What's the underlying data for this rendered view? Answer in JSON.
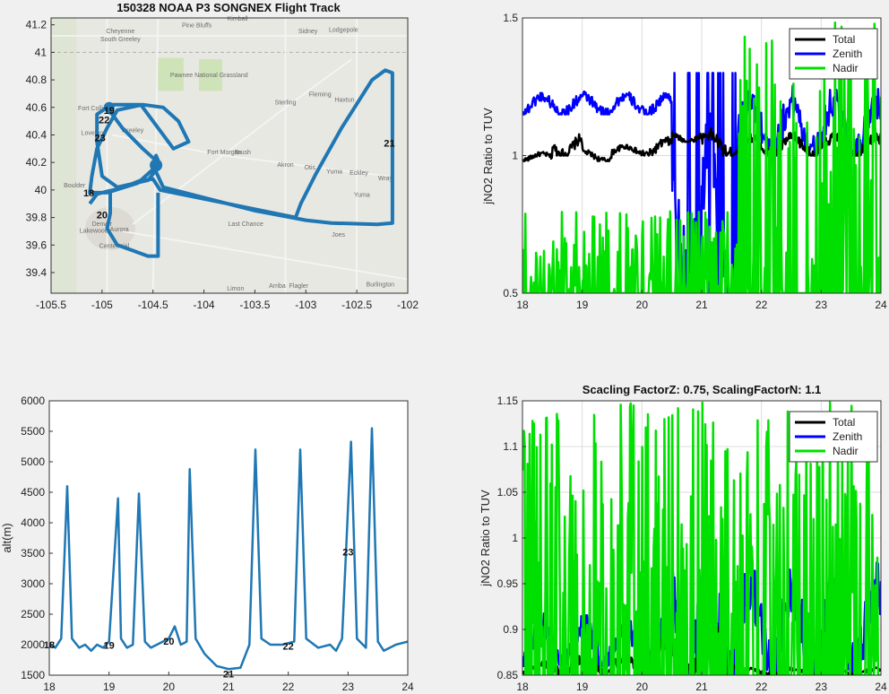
{
  "figure": {
    "background": "#f0f0f0"
  },
  "chart_data": [
    {
      "id": "map",
      "type": "line",
      "title": "150328 NOAA P3 SONGNEX Flight Track",
      "xlim": [
        -105.5,
        -102
      ],
      "ylim": [
        39.25,
        41.25
      ],
      "xticks": [
        -105.5,
        -105,
        -104.5,
        -104,
        -103.5,
        -103,
        -102.5,
        -102
      ],
      "yticks": [
        39.4,
        39.6,
        39.8,
        40,
        40.2,
        40.4,
        40.6,
        40.8,
        41,
        41.2
      ],
      "grid": false,
      "series": [
        {
          "color": "#1f77b4",
          "points": [
            [
              -104.92,
              40.55
            ],
            [
              -104.92,
              40.62
            ],
            [
              -104.75,
              40.62
            ],
            [
              -104.62,
              40.62
            ],
            [
              -104.5,
              40.5
            ],
            [
              -104.3,
              40.3
            ],
            [
              -104.15,
              40.35
            ],
            [
              -104.25,
              40.5
            ],
            [
              -104.4,
              40.6
            ],
            [
              -104.6,
              40.62
            ],
            [
              -104.85,
              40.58
            ],
            [
              -104.95,
              40.45
            ],
            [
              -105.05,
              40.3
            ],
            [
              -105.1,
              40.1
            ],
            [
              -105.12,
              39.98
            ],
            [
              -104.95,
              39.98
            ],
            [
              -104.65,
              40.05
            ],
            [
              -104.5,
              40.15
            ],
            [
              -104.45,
              40.2
            ],
            [
              -104.6,
              40.3
            ],
            [
              -104.8,
              40.45
            ],
            [
              -104.95,
              40.6
            ],
            [
              -105.05,
              40.55
            ],
            [
              -105.05,
              40.35
            ],
            [
              -105.0,
              40.1
            ],
            [
              -104.85,
              40.02
            ],
            [
              -104.55,
              40.07
            ],
            [
              -104.43,
              40.18
            ],
            [
              -104.47,
              40.25
            ],
            [
              -104.5,
              40.18
            ],
            [
              -104.4,
              40.02
            ],
            [
              -103.5,
              39.85
            ],
            [
              -103.0,
              39.78
            ],
            [
              -102.75,
              39.76
            ],
            [
              -102.3,
              39.75
            ],
            [
              -102.15,
              39.76
            ],
            [
              -102.15,
              40.85
            ],
            [
              -102.22,
              40.87
            ],
            [
              -102.35,
              40.8
            ],
            [
              -102.65,
              40.45
            ],
            [
              -102.9,
              40.12
            ],
            [
              -103.05,
              39.9
            ],
            [
              -103.1,
              39.8
            ],
            [
              -104.43,
              40.0
            ],
            [
              -104.5,
              40.08
            ],
            [
              -104.62,
              40.07
            ],
            [
              -104.82,
              40.01
            ],
            [
              -104.95,
              39.99
            ],
            [
              -105.05,
              39.97
            ],
            [
              -105.12,
              39.9
            ]
          ]
        },
        {
          "color": "#1f77b4",
          "points": [
            [
              -104.92,
              40.0
            ],
            [
              -104.92,
              39.83
            ],
            [
              -104.95,
              39.72
            ],
            [
              -104.85,
              39.6
            ],
            [
              -104.7,
              39.56
            ],
            [
              -104.55,
              39.52
            ],
            [
              -104.45,
              39.52
            ],
            [
              -104.45,
              39.7
            ],
            [
              -104.45,
              39.85
            ],
            [
              -104.45,
              39.98
            ]
          ]
        }
      ],
      "annotations": [
        {
          "text": "19",
          "x": -104.93,
          "y": 40.58
        },
        {
          "text": "22",
          "x": -104.98,
          "y": 40.51
        },
        {
          "text": "23",
          "x": -105.02,
          "y": 40.38
        },
        {
          "text": "18",
          "x": -105.13,
          "y": 39.98
        },
        {
          "text": "20",
          "x": -105.0,
          "y": 39.82
        },
        {
          "text": "21",
          "x": -102.18,
          "y": 40.34
        }
      ],
      "basemap_labels": [
        {
          "text": "Cheyenne",
          "x": -104.82,
          "y": 41.14
        },
        {
          "text": "South Greeley",
          "x": -104.82,
          "y": 41.08
        },
        {
          "text": "Pine Bluffs",
          "x": -104.07,
          "y": 41.18
        },
        {
          "text": "Kimball",
          "x": -103.67,
          "y": 41.23
        },
        {
          "text": "Sidney",
          "x": -102.98,
          "y": 41.14
        },
        {
          "text": "Lodgepole",
          "x": -102.63,
          "y": 41.15
        },
        {
          "text": "Pawnee National Grassland",
          "x": -103.95,
          "y": 40.82
        },
        {
          "text": "Fort Collins",
          "x": -105.08,
          "y": 40.58
        },
        {
          "text": "Loveland",
          "x": -105.08,
          "y": 40.4
        },
        {
          "text": "Greeley",
          "x": -104.7,
          "y": 40.42
        },
        {
          "text": "Sterling",
          "x": -103.2,
          "y": 40.62
        },
        {
          "text": "Fleming",
          "x": -102.86,
          "y": 40.68
        },
        {
          "text": "Haxtun",
          "x": -102.62,
          "y": 40.64
        },
        {
          "text": "Fort Morgan",
          "x": -103.8,
          "y": 40.26
        },
        {
          "text": "Brush",
          "x": -103.62,
          "y": 40.26
        },
        {
          "text": "Akron",
          "x": -103.2,
          "y": 40.17
        },
        {
          "text": "Otis",
          "x": -102.96,
          "y": 40.15
        },
        {
          "text": "Wray",
          "x": -102.22,
          "y": 40.07
        },
        {
          "text": "Eckley",
          "x": -102.48,
          "y": 40.11
        },
        {
          "text": "Yuma",
          "x": -102.72,
          "y": 40.12
        },
        {
          "text": "Boulder",
          "x": -105.27,
          "y": 40.02
        },
        {
          "text": "Denver",
          "x": -105.0,
          "y": 39.74
        },
        {
          "text": "Aurora",
          "x": -104.83,
          "y": 39.7
        },
        {
          "text": "Lakewood",
          "x": -105.08,
          "y": 39.69
        },
        {
          "text": "Centennial",
          "x": -104.88,
          "y": 39.58
        },
        {
          "text": "Limon",
          "x": -103.69,
          "y": 39.27
        },
        {
          "text": "Arriba",
          "x": -103.28,
          "y": 39.29
        },
        {
          "text": "Flagler",
          "x": -103.07,
          "y": 39.29
        },
        {
          "text": "Burlington",
          "x": -102.27,
          "y": 39.3
        },
        {
          "text": "Last Chance",
          "x": -103.59,
          "y": 39.74
        },
        {
          "text": "Joes",
          "x": -102.68,
          "y": 39.66
        },
        {
          "text": "Yuma",
          "x": -102.45,
          "y": 39.95
        }
      ]
    },
    {
      "id": "ratio-raw",
      "type": "line",
      "title": "",
      "xlabel": "",
      "ylabel": "jNO2 Ratio to TUV",
      "xlim": [
        18,
        24
      ],
      "ylim": [
        0.5,
        1.5
      ],
      "xticks": [
        18,
        19,
        20,
        21,
        22,
        23,
        24
      ],
      "yticks": [
        0.5,
        1,
        1.5
      ],
      "grid": true,
      "legend": "top-right",
      "series": [
        {
          "name": "Total",
          "color": "#000000",
          "generator": {
            "type": "baseline",
            "start": 18,
            "end": 24,
            "y0": 1.0,
            "segments": [
              [
                18,
                18.5,
                0.98,
                1.02
              ],
              [
                18.5,
                19.0,
                1.0,
                1.1
              ],
              [
                19.0,
                19.5,
                0.98,
                1.03
              ],
              [
                19.5,
                20.0,
                1.0,
                1.05
              ],
              [
                20.0,
                20.5,
                1.0,
                1.08
              ],
              [
                20.5,
                21.0,
                1.05,
                1.1
              ],
              [
                21.0,
                21.5,
                1.0,
                1.12
              ],
              [
                21.5,
                22.0,
                1.0,
                1.1
              ],
              [
                22.0,
                24.0,
                1.0,
                1.1
              ]
            ]
          }
        },
        {
          "name": "Zenith",
          "color": "#0000ff",
          "generator": {
            "type": "baseline",
            "start": 18,
            "end": 24,
            "y0": 1.2,
            "segments": [
              [
                18,
                20.5,
                1.15,
                1.25
              ],
              [
                20.5,
                21.6,
                0.5,
                1.3
              ],
              [
                21.6,
                24.0,
                1.0,
                1.3
              ]
            ]
          }
        },
        {
          "name": "Nadir",
          "color": "#00e000",
          "generator": {
            "type": "spikes",
            "start": 18,
            "end": 24,
            "y0": 0.5,
            "segments": [
              [
                18.0,
                21.6,
                0.5,
                0.8
              ],
              [
                21.6,
                24.0,
                0.5,
                1.5
              ]
            ]
          }
        }
      ]
    },
    {
      "id": "altitude",
      "type": "line",
      "title": "",
      "xlabel": "",
      "ylabel": "alt(m)",
      "xlim": [
        18,
        24
      ],
      "ylim": [
        1500,
        6000
      ],
      "xticks": [
        18,
        19,
        20,
        21,
        22,
        23,
        24
      ],
      "yticks": [
        1500,
        2000,
        2500,
        3000,
        3500,
        4000,
        4500,
        5000,
        5500,
        6000
      ],
      "grid": false,
      "series": [
        {
          "color": "#1f77b4",
          "points": [
            [
              18.0,
              2000
            ],
            [
              18.1,
              1950
            ],
            [
              18.2,
              2100
            ],
            [
              18.3,
              4600
            ],
            [
              18.38,
              2100
            ],
            [
              18.5,
              1950
            ],
            [
              18.6,
              2000
            ],
            [
              18.7,
              1900
            ],
            [
              18.8,
              2000
            ],
            [
              18.9,
              1950
            ],
            [
              19.0,
              2050
            ],
            [
              19.15,
              4400
            ],
            [
              19.2,
              2100
            ],
            [
              19.3,
              1950
            ],
            [
              19.4,
              2000
            ],
            [
              19.5,
              4480
            ],
            [
              19.6,
              2050
            ],
            [
              19.7,
              1950
            ],
            [
              19.8,
              2000
            ],
            [
              20.0,
              2100
            ],
            [
              20.1,
              2300
            ],
            [
              20.2,
              2000
            ],
            [
              20.3,
              2050
            ],
            [
              20.35,
              4880
            ],
            [
              20.45,
              2100
            ],
            [
              20.6,
              1850
            ],
            [
              20.8,
              1650
            ],
            [
              21.0,
              1600
            ],
            [
              21.2,
              1620
            ],
            [
              21.35,
              2000
            ],
            [
              21.45,
              5200
            ],
            [
              21.55,
              2100
            ],
            [
              21.7,
              2000
            ],
            [
              21.9,
              2000
            ],
            [
              22.1,
              2050
            ],
            [
              22.2,
              5200
            ],
            [
              22.3,
              2100
            ],
            [
              22.5,
              1950
            ],
            [
              22.7,
              2000
            ],
            [
              22.8,
              1900
            ],
            [
              22.9,
              2100
            ],
            [
              23.05,
              5330
            ],
            [
              23.15,
              2100
            ],
            [
              23.3,
              1950
            ],
            [
              23.4,
              5550
            ],
            [
              23.5,
              2050
            ],
            [
              23.6,
              1900
            ],
            [
              23.8,
              2000
            ],
            [
              24.0,
              2050
            ]
          ]
        }
      ],
      "annotations": [
        {
          "text": "18",
          "x": 18.0,
          "y": 2000
        },
        {
          "text": "19",
          "x": 19.0,
          "y": 1990
        },
        {
          "text": "20",
          "x": 20.0,
          "y": 2060
        },
        {
          "text": "21",
          "x": 21.0,
          "y": 1520
        },
        {
          "text": "22",
          "x": 22.0,
          "y": 1980
        },
        {
          "text": "23",
          "x": 23.0,
          "y": 3520
        }
      ]
    },
    {
      "id": "ratio-scaled",
      "type": "line",
      "title": "Scacling FactorZ: 0.75, ScalingFactorN: 1.1",
      "xlabel": "",
      "ylabel": "jNO2 Ratio to TUV",
      "xlim": [
        18,
        24
      ],
      "ylim": [
        0.85,
        1.15
      ],
      "xticks": [
        18,
        19,
        20,
        21,
        22,
        23,
        24
      ],
      "yticks": [
        0.85,
        0.9,
        0.95,
        1,
        1.05,
        1.1,
        1.15
      ],
      "grid": true,
      "legend": "top-right",
      "series": [
        {
          "name": "Total",
          "color": "#000000",
          "generator": {
            "type": "baseline",
            "start": 18,
            "end": 24,
            "y0": 0.85,
            "segments": [
              [
                18,
                18.5,
                0.85,
                0.87
              ],
              [
                18.5,
                19.0,
                0.85,
                0.88
              ],
              [
                19.0,
                20.0,
                0.85,
                0.88
              ],
              [
                20.0,
                21.0,
                0.85,
                0.91
              ],
              [
                21.0,
                21.6,
                0.85,
                0.95
              ],
              [
                21.6,
                24.0,
                0.85,
                0.86
              ]
            ]
          }
        },
        {
          "name": "Zenith",
          "color": "#0000ff",
          "generator": {
            "type": "baseline",
            "start": 18,
            "end": 24,
            "y0": 0.88,
            "segments": [
              [
                18,
                20.5,
                0.86,
                0.93
              ],
              [
                20.5,
                21.6,
                0.85,
                1.03
              ],
              [
                21.6,
                24.0,
                0.85,
                1.0
              ]
            ]
          }
        },
        {
          "name": "Nadir",
          "color": "#00e000",
          "generator": {
            "type": "spikes",
            "start": 18,
            "end": 24,
            "y0": 0.85,
            "segments": [
              [
                21.6,
                22.6,
                0.85,
                1.15
              ],
              [
                22.6,
                24.0,
                0.85,
                1.15
              ]
            ]
          }
        }
      ]
    }
  ]
}
